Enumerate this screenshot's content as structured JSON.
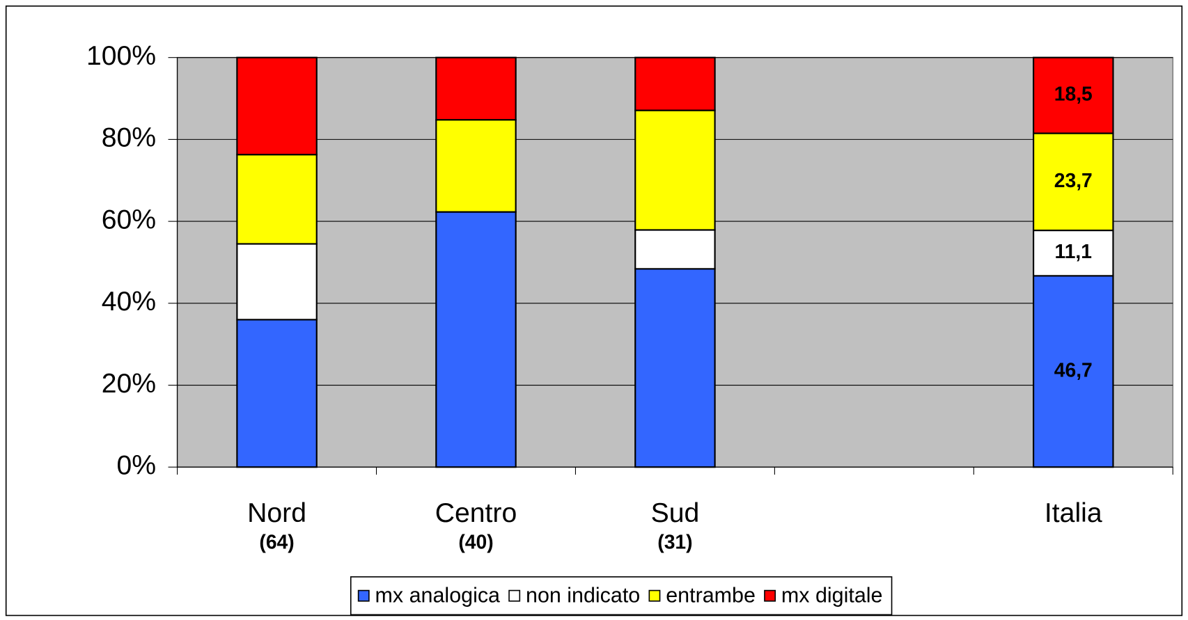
{
  "chart_data": {
    "type": "stacked_bar_100",
    "categories": [
      "Nord",
      "Centro",
      "Sud",
      null,
      "Italia"
    ],
    "sample_sizes": [
      "(64)",
      "(40)",
      "(31)",
      null,
      null
    ],
    "series": [
      {
        "name": "mx analogica",
        "color": "#3366ff",
        "values": [
          36.0,
          62.3,
          48.4,
          null,
          46.7
        ],
        "value_labels": [
          null,
          null,
          null,
          null,
          "46,7"
        ]
      },
      {
        "name": "non indicato",
        "color": "#ffffff",
        "values": [
          18.5,
          0,
          9.5,
          null,
          11.1
        ],
        "value_labels": [
          null,
          null,
          null,
          null,
          "11,1"
        ]
      },
      {
        "name": "entrambe",
        "color": "#ffff00",
        "values": [
          21.8,
          22.5,
          29.2,
          null,
          23.7
        ],
        "value_labels": [
          null,
          null,
          null,
          null,
          "23,7"
        ]
      },
      {
        "name": "mx digitale",
        "color": "#ff0000",
        "values": [
          23.7,
          15.2,
          12.9,
          null,
          18.5
        ],
        "value_labels": [
          null,
          null,
          null,
          null,
          "18,5"
        ]
      }
    ],
    "ylim": [
      0,
      100
    ],
    "yticks": [
      {
        "value": 0,
        "label": "0%"
      },
      {
        "value": 20,
        "label": "20%"
      },
      {
        "value": 40,
        "label": "40%"
      },
      {
        "value": 60,
        "label": "60%"
      },
      {
        "value": 80,
        "label": "80%"
      },
      {
        "value": 100,
        "label": "100%"
      }
    ],
    "grid": true,
    "plot_background": "#c0c0c0",
    "legend": "bottom"
  }
}
